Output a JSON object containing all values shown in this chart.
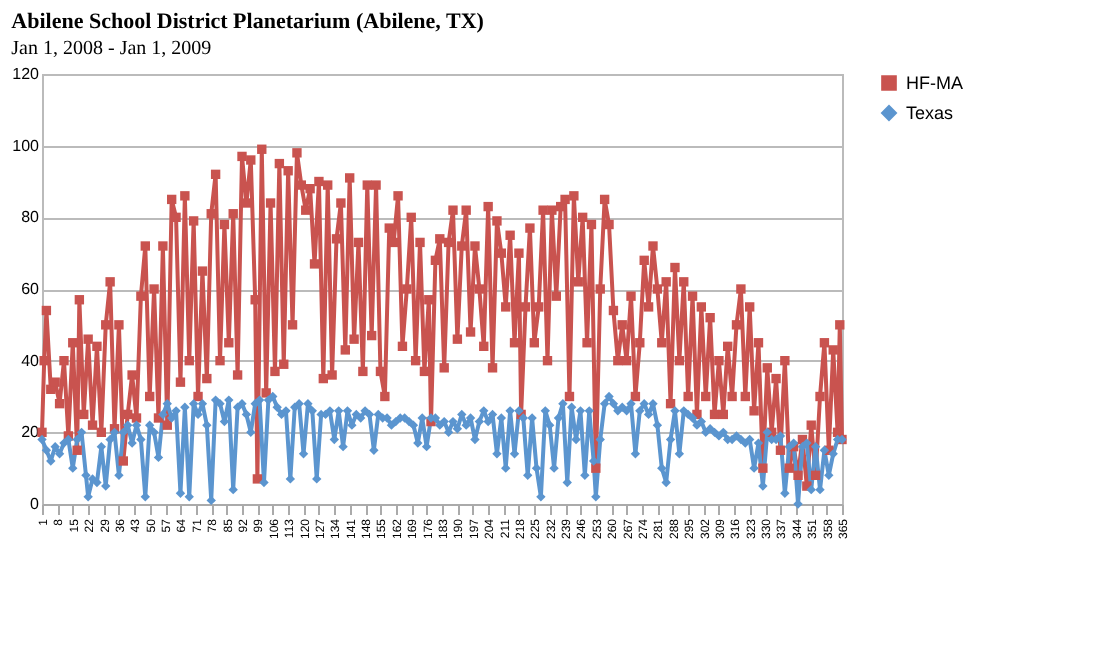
{
  "chart_data": {
    "type": "line",
    "title": "Abilene School District Planetarium (Abilene, TX)",
    "subtitle": "Jan 1, 2008 - Jan 1, 2009",
    "xlim": [
      1,
      365
    ],
    "xticks": [
      1,
      8,
      15,
      22,
      29,
      36,
      43,
      50,
      57,
      64,
      71,
      78,
      85,
      92,
      99,
      106,
      113,
      120,
      127,
      134,
      141,
      148,
      155,
      162,
      169,
      176,
      183,
      190,
      197,
      204,
      211,
      218,
      225,
      232,
      239,
      246,
      253,
      260,
      267,
      274,
      281,
      288,
      295,
      302,
      309,
      316,
      323,
      330,
      337,
      344,
      351,
      358,
      365
    ],
    "ylim": [
      0,
      120
    ],
    "yticks": [
      0,
      20,
      40,
      60,
      80,
      100,
      120
    ],
    "grid": "y",
    "legend": "right",
    "line_style": "solid",
    "series": [
      {
        "name": "HF-MA",
        "color": "#c9534f",
        "marker": "square",
        "x": [
          1,
          2,
          3,
          5,
          7,
          9,
          11,
          13,
          15,
          17,
          18,
          20,
          22,
          24,
          26,
          28,
          30,
          32,
          34,
          36,
          38,
          40,
          42,
          44,
          46,
          48,
          50,
          52,
          54,
          56,
          58,
          60,
          62,
          64,
          66,
          68,
          70,
          72,
          74,
          76,
          78,
          80,
          82,
          84,
          86,
          88,
          90,
          92,
          94,
          96,
          98,
          99,
          101,
          103,
          105,
          107,
          109,
          111,
          113,
          115,
          117,
          119,
          121,
          123,
          125,
          127,
          129,
          131,
          133,
          135,
          137,
          139,
          141,
          143,
          145,
          147,
          149,
          151,
          153,
          155,
          157,
          159,
          161,
          163,
          165,
          167,
          169,
          171,
          173,
          175,
          177,
          178,
          180,
          182,
          184,
          186,
          188,
          190,
          192,
          194,
          196,
          198,
          200,
          202,
          204,
          206,
          208,
          210,
          212,
          214,
          216,
          218,
          219,
          221,
          223,
          225,
          227,
          229,
          231,
          233,
          235,
          237,
          239,
          241,
          243,
          245,
          247,
          249,
          251,
          253,
          255,
          257,
          259,
          261,
          263,
          265,
          267,
          269,
          271,
          273,
          275,
          277,
          279,
          281,
          283,
          285,
          287,
          289,
          291,
          293,
          295,
          297,
          299,
          301,
          303,
          305,
          307,
          309,
          311,
          313,
          315,
          317,
          319,
          321,
          323,
          325,
          327,
          329,
          331,
          333,
          335,
          337,
          339,
          341,
          343,
          345,
          347,
          349,
          351,
          353,
          355,
          357,
          359,
          361,
          363,
          364,
          365
        ],
        "values": [
          20,
          40,
          54,
          32,
          34,
          28,
          40,
          19,
          45,
          15,
          57,
          25,
          46,
          22,
          44,
          20,
          50,
          62,
          21,
          50,
          12,
          25,
          36,
          24,
          58,
          72,
          30,
          60,
          24,
          72,
          22,
          85,
          80,
          34,
          86,
          40,
          79,
          30,
          65,
          35,
          81,
          92,
          40,
          78,
          45,
          81,
          36,
          97,
          84,
          96,
          57,
          7,
          99,
          31,
          84,
          37,
          95,
          39,
          93,
          50,
          98,
          89,
          82,
          88,
          67,
          90,
          35,
          89,
          36,
          74,
          84,
          43,
          91,
          46,
          73,
          37,
          89,
          47,
          89,
          37,
          30,
          77,
          73,
          86,
          44,
          60,
          80,
          40,
          73,
          37,
          57,
          23,
          68,
          74,
          38,
          73,
          82,
          46,
          72,
          82,
          48,
          72,
          60,
          44,
          83,
          38,
          79,
          70,
          55,
          75,
          45,
          70,
          25,
          55,
          77,
          45,
          55,
          82,
          40,
          82,
          58,
          83,
          85,
          30,
          86,
          62,
          80,
          45,
          78,
          10,
          60,
          85,
          78,
          54,
          40,
          50,
          40,
          58,
          30,
          45,
          68,
          55,
          72,
          60,
          45,
          62,
          28,
          66,
          40,
          62,
          30,
          58,
          25,
          55,
          30,
          52,
          25,
          40,
          25,
          44,
          30,
          50,
          60,
          30,
          55,
          26,
          45,
          10,
          38,
          20,
          35,
          15,
          40,
          10,
          16,
          8,
          18,
          5,
          22,
          8,
          30,
          45,
          15,
          43,
          20,
          50,
          18
        ]
      },
      {
        "name": "Texas",
        "color": "#5b95cf",
        "marker": "diamond",
        "x": [
          1,
          3,
          5,
          7,
          9,
          11,
          13,
          15,
          17,
          19,
          21,
          22,
          24,
          26,
          28,
          30,
          32,
          34,
          36,
          38,
          40,
          42,
          44,
          46,
          48,
          50,
          52,
          54,
          56,
          58,
          60,
          62,
          64,
          66,
          68,
          70,
          72,
          74,
          76,
          78,
          80,
          82,
          84,
          86,
          88,
          90,
          92,
          94,
          96,
          98,
          100,
          102,
          104,
          106,
          108,
          110,
          112,
          114,
          116,
          118,
          120,
          122,
          124,
          126,
          128,
          130,
          132,
          134,
          136,
          138,
          140,
          142,
          144,
          146,
          148,
          150,
          152,
          154,
          156,
          158,
          160,
          162,
          164,
          166,
          168,
          170,
          172,
          174,
          176,
          178,
          180,
          182,
          184,
          186,
          188,
          190,
          192,
          194,
          196,
          198,
          200,
          202,
          204,
          206,
          208,
          210,
          212,
          214,
          216,
          218,
          220,
          222,
          224,
          226,
          228,
          230,
          232,
          234,
          236,
          238,
          240,
          242,
          244,
          246,
          248,
          250,
          252,
          253,
          255,
          257,
          259,
          261,
          263,
          265,
          267,
          269,
          271,
          273,
          275,
          277,
          279,
          281,
          283,
          285,
          287,
          289,
          291,
          293,
          295,
          297,
          299,
          301,
          303,
          305,
          307,
          309,
          311,
          313,
          315,
          317,
          319,
          321,
          323,
          325,
          327,
          329,
          331,
          333,
          335,
          337,
          339,
          341,
          343,
          345,
          347,
          349,
          351,
          353,
          355,
          357,
          359,
          361,
          363,
          365
        ],
        "values": [
          18,
          15,
          12,
          16,
          14,
          17,
          18,
          10,
          18,
          20,
          8,
          2,
          7,
          6,
          16,
          5,
          18,
          20,
          8,
          20,
          22,
          17,
          22,
          18,
          2,
          22,
          20,
          13,
          25,
          28,
          24,
          26,
          3,
          27,
          2,
          28,
          25,
          28,
          22,
          1,
          29,
          28,
          23,
          29,
          4,
          27,
          28,
          25,
          20,
          28,
          29,
          6,
          29,
          30,
          27,
          25,
          26,
          7,
          27,
          28,
          14,
          28,
          26,
          7,
          25,
          25,
          26,
          18,
          26,
          16,
          26,
          22,
          25,
          24,
          26,
          25,
          15,
          25,
          24,
          24,
          22,
          23,
          24,
          24,
          23,
          22,
          17,
          24,
          16,
          24,
          24,
          22,
          23,
          20,
          23,
          21,
          25,
          22,
          24,
          18,
          23,
          26,
          23,
          25,
          14,
          24,
          10,
          26,
          14,
          26,
          24,
          8,
          24,
          10,
          2,
          26,
          22,
          10,
          24,
          28,
          6,
          27,
          18,
          26,
          8,
          26,
          12,
          2,
          18,
          28,
          30,
          28,
          26,
          27,
          26,
          28,
          14,
          26,
          28,
          25,
          28,
          22,
          10,
          6,
          18,
          26,
          14,
          26,
          25,
          24,
          22,
          23,
          20,
          21,
          20,
          19,
          20,
          18,
          18,
          19,
          18,
          17,
          18,
          10,
          17,
          5,
          20,
          18,
          18,
          19,
          3,
          16,
          17,
          0,
          16,
          17,
          4,
          16,
          4,
          15,
          8,
          14,
          18,
          18
        ]
      }
    ]
  }
}
